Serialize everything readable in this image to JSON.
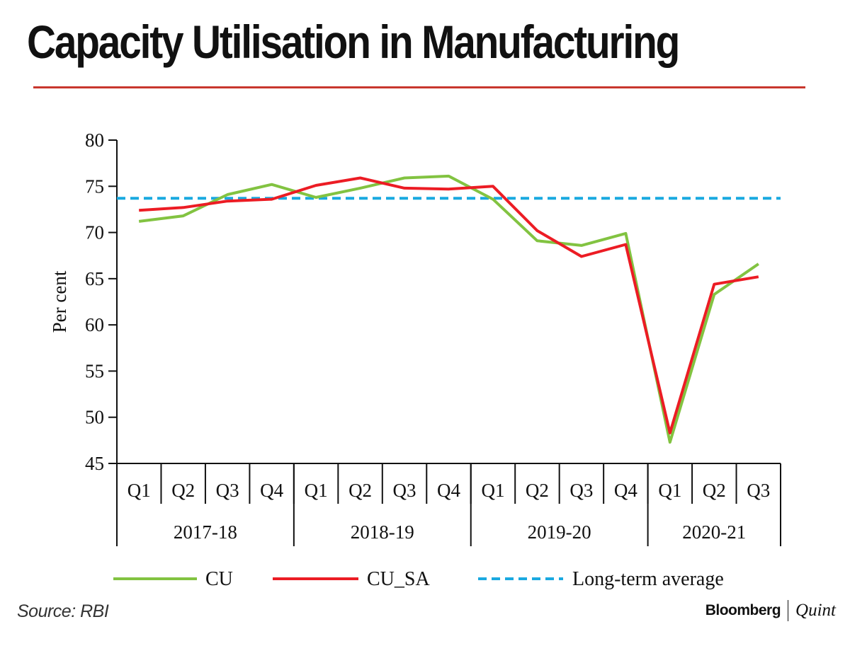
{
  "title": "Capacity Utilisation in Manufacturing",
  "colors": {
    "rule": "#c8372d",
    "cu": "#82c341",
    "cu_sa": "#ec1c24",
    "average": "#1aa9e0",
    "axis": "#111111"
  },
  "chart_data": {
    "type": "line",
    "title": "",
    "xlabel": "",
    "ylabel": "Per cent",
    "ylim": [
      45,
      80
    ],
    "yticks": [
      45,
      50,
      55,
      60,
      65,
      70,
      75,
      80
    ],
    "grid": false,
    "legend_position": "bottom",
    "categories": [
      "Q1",
      "Q2",
      "Q3",
      "Q4",
      "Q1",
      "Q2",
      "Q3",
      "Q4",
      "Q1",
      "Q2",
      "Q3",
      "Q4",
      "Q1",
      "Q2",
      "Q3"
    ],
    "groups": [
      {
        "label": "2017-18",
        "count": 4
      },
      {
        "label": "2018-19",
        "count": 4
      },
      {
        "label": "2019-20",
        "count": 4
      },
      {
        "label": "2020-21",
        "count": 3
      }
    ],
    "series": [
      {
        "name": "CU",
        "color": "#82c341",
        "style": "solid",
        "values": [
          71.2,
          71.8,
          74.1,
          75.2,
          73.8,
          74.8,
          75.9,
          76.1,
          73.6,
          69.1,
          68.6,
          69.9,
          47.3,
          63.3,
          66.6
        ]
      },
      {
        "name": "CU_SA",
        "color": "#ec1c24",
        "style": "solid",
        "values": [
          72.4,
          72.7,
          73.4,
          73.6,
          75.1,
          75.9,
          74.8,
          74.7,
          75.0,
          70.2,
          67.4,
          68.7,
          48.3,
          64.4,
          65.2
        ]
      },
      {
        "name": "Long-term average",
        "color": "#1aa9e0",
        "style": "dashed",
        "values": [
          73.7,
          73.7,
          73.7,
          73.7,
          73.7,
          73.7,
          73.7,
          73.7,
          73.7,
          73.7,
          73.7,
          73.7,
          73.7,
          73.7,
          73.7
        ]
      }
    ]
  },
  "source": "Source: RBI",
  "brand": {
    "primary": "Bloomberg",
    "secondary": "Quint"
  }
}
